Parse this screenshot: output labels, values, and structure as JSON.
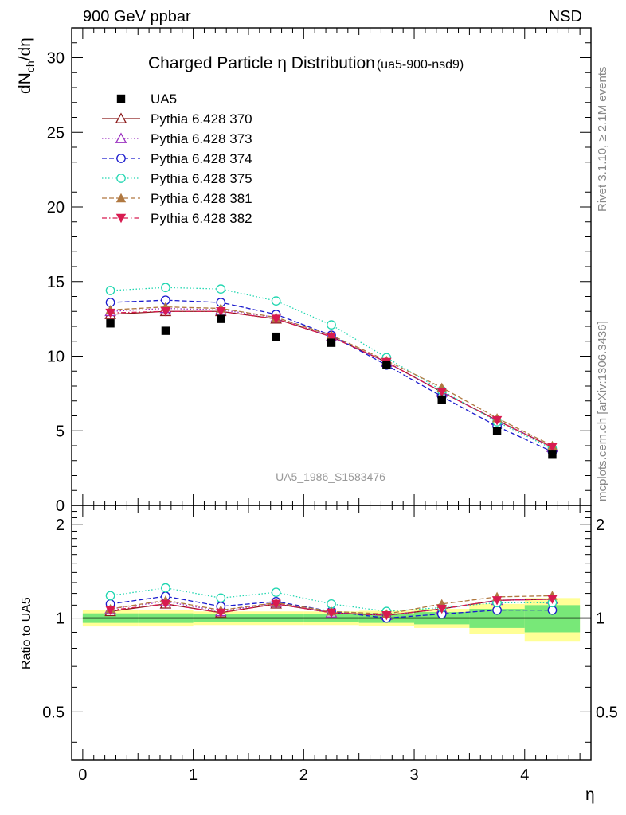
{
  "header": {
    "left": "900 GeV ppbar",
    "right": "NSD"
  },
  "side_text": {
    "rivet": "Rivet 3.1.10, ≥ 2.1M events",
    "mcplots": "mcplots.cern.ch [arXiv:1306.3436]"
  },
  "chart_data": [
    {
      "type": "scatter",
      "title": "Charged Particle",
      "title_symbol": "η",
      "title_rest": "Distribution",
      "title_sub": "(ua5-900-nsd9)",
      "ylabel": "dN",
      "ylabel_sub": "ch",
      "ylabel_tail": "/dη",
      "watermark": "UA5_1986_S1583476",
      "xlim": [
        -0.1,
        4.6
      ],
      "ylim": [
        0,
        32
      ],
      "yticks": [
        0,
        5,
        10,
        15,
        20,
        25,
        30
      ],
      "grid": false,
      "legend_position": "top-left",
      "x": [
        0.25,
        0.75,
        1.25,
        1.75,
        2.25,
        2.75,
        3.25,
        3.75,
        4.25
      ],
      "data": {
        "name": "UA5",
        "marker": "square-filled",
        "color": "#000000",
        "values": [
          12.2,
          11.7,
          12.5,
          11.3,
          10.9,
          9.4,
          7.1,
          5.0,
          3.4
        ]
      },
      "series": [
        {
          "name": "Pythia 6.428 370",
          "color": "#8b1a1a",
          "marker": "triangle-open",
          "dash": "solid",
          "values": [
            12.8,
            13.0,
            13.0,
            12.5,
            11.3,
            9.6,
            7.6,
            5.7,
            3.9
          ]
        },
        {
          "name": "Pythia 6.428 373",
          "color": "#9b30c0",
          "marker": "triangle-open",
          "dash": "dotted",
          "values": [
            13.0,
            13.2,
            13.1,
            12.6,
            11.3,
            9.6,
            7.6,
            5.7,
            3.9
          ]
        },
        {
          "name": "Pythia 6.428 374",
          "color": "#1a1acd",
          "marker": "circle-open",
          "dash": "dashed",
          "values": [
            13.6,
            13.75,
            13.6,
            12.8,
            11.4,
            9.4,
            7.3,
            5.3,
            3.6
          ]
        },
        {
          "name": "Pythia 6.428 375",
          "color": "#20d6b0",
          "marker": "circle-open",
          "dash": "dotted",
          "values": [
            14.4,
            14.6,
            14.5,
            13.7,
            12.1,
            9.9,
            7.7,
            5.6,
            3.8
          ]
        },
        {
          "name": "Pythia 6.428 381",
          "color": "#b07840",
          "marker": "triangle-filled",
          "dash": "dashed",
          "values": [
            13.1,
            13.3,
            13.2,
            12.6,
            11.4,
            9.7,
            7.9,
            5.85,
            4.0
          ]
        },
        {
          "name": "Pythia 6.428 382",
          "color": "#d81b50",
          "marker": "triangle-down-filled",
          "dash": "dashdot",
          "values": [
            12.9,
            13.0,
            13.0,
            12.5,
            11.3,
            9.6,
            7.6,
            5.7,
            3.9
          ]
        }
      ]
    },
    {
      "type": "line",
      "ylabel": "Ratio to UA5",
      "xlabel": "η",
      "xlim": [
        -0.1,
        4.6
      ],
      "ylim": [
        0.35,
        2.3
      ],
      "xticks": [
        0,
        1,
        2,
        3,
        4
      ],
      "yticks": [
        0.5,
        1,
        2
      ],
      "grid": false,
      "x": [
        0.25,
        0.75,
        1.25,
        1.75,
        2.25,
        2.75,
        3.25,
        3.75,
        4.25
      ],
      "bands": {
        "bin_edges": [
          0.0,
          0.5,
          1.0,
          1.5,
          2.0,
          2.5,
          3.0,
          3.5,
          4.0,
          4.5
        ],
        "inner": [
          0.035,
          0.035,
          0.03,
          0.03,
          0.03,
          0.035,
          0.045,
          0.07,
          0.1
        ],
        "outer": [
          0.06,
          0.06,
          0.05,
          0.05,
          0.05,
          0.055,
          0.07,
          0.11,
          0.16
        ],
        "inner_color": "#78e878",
        "outer_color": "#ffff96"
      },
      "series": [
        {
          "name": "Pythia 6.428 370",
          "values": [
            1.05,
            1.11,
            1.04,
            1.11,
            1.04,
            1.02,
            1.07,
            1.14,
            1.15
          ]
        },
        {
          "name": "Pythia 6.428 373",
          "values": [
            1.07,
            1.13,
            1.05,
            1.12,
            1.04,
            1.02,
            1.07,
            1.14,
            1.15
          ]
        },
        {
          "name": "Pythia 6.428 374",
          "values": [
            1.11,
            1.175,
            1.09,
            1.13,
            1.05,
            1.0,
            1.03,
            1.06,
            1.06
          ]
        },
        {
          "name": "Pythia 6.428 375",
          "values": [
            1.18,
            1.25,
            1.16,
            1.21,
            1.11,
            1.05,
            1.08,
            1.12,
            1.12
          ]
        },
        {
          "name": "Pythia 6.428 381",
          "values": [
            1.07,
            1.14,
            1.06,
            1.12,
            1.05,
            1.03,
            1.11,
            1.17,
            1.18
          ]
        },
        {
          "name": "Pythia 6.428 382",
          "values": [
            1.06,
            1.11,
            1.04,
            1.11,
            1.04,
            1.02,
            1.07,
            1.14,
            1.15
          ]
        }
      ]
    }
  ]
}
